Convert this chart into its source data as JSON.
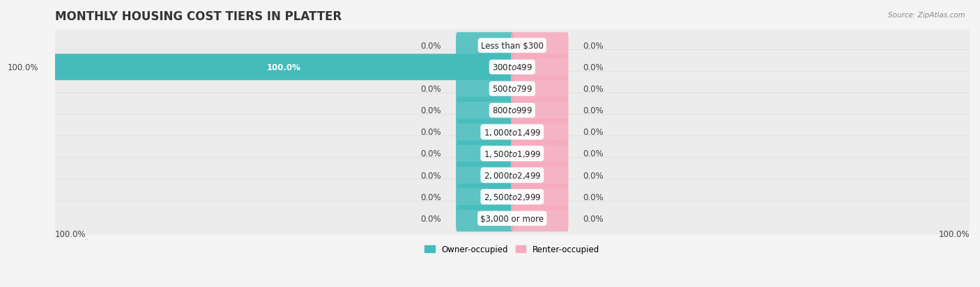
{
  "title": "MONTHLY HOUSING COST TIERS IN PLATTER",
  "source": "Source: ZipAtlas.com",
  "categories": [
    "Less than $300",
    "$300 to $499",
    "$500 to $799",
    "$800 to $999",
    "$1,000 to $1,499",
    "$1,500 to $1,999",
    "$2,000 to $2,499",
    "$2,500 to $2,999",
    "$3,000 or more"
  ],
  "owner_values": [
    0.0,
    100.0,
    0.0,
    0.0,
    0.0,
    0.0,
    0.0,
    0.0,
    0.0
  ],
  "renter_values": [
    0.0,
    0.0,
    0.0,
    0.0,
    0.0,
    0.0,
    0.0,
    0.0,
    0.0
  ],
  "owner_color": "#45BCBC",
  "renter_color": "#F7AABF",
  "bar_bg_color": "#ececec",
  "page_bg_color": "#f4f4f4",
  "title_fontsize": 12,
  "label_fontsize": 8.5,
  "axis_max": 100.0,
  "legend_owner": "Owner-occupied",
  "legend_renter": "Renter-occupied",
  "stub_size": 12.0,
  "bar_height": 0.62
}
